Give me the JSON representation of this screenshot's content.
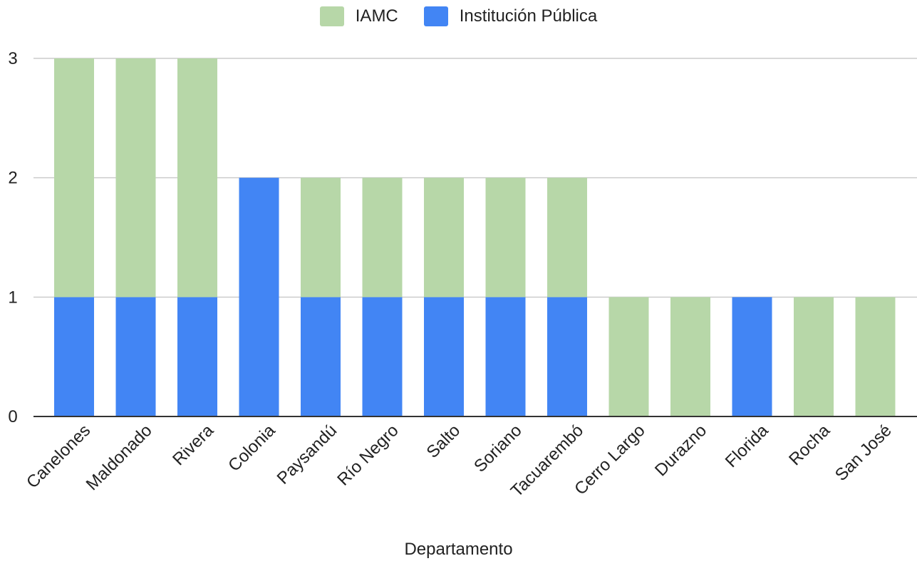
{
  "chart_data": {
    "type": "bar",
    "stacked": true,
    "categories": [
      "Canelones",
      "Maldonado",
      "Rivera",
      "Colonia",
      "Paysandú",
      "Río Negro",
      "Salto",
      "Soriano",
      "Tacuarembó",
      "Cerro Largo",
      "Durazno",
      "Florida",
      "Rocha",
      "San José"
    ],
    "series": [
      {
        "name": "Institución Pública",
        "color": "#4285f4",
        "values": [
          1,
          1,
          1,
          2,
          1,
          1,
          1,
          1,
          1,
          0,
          0,
          1,
          0,
          0
        ]
      },
      {
        "name": "IAMC",
        "color": "#b7d7a8",
        "values": [
          2,
          2,
          2,
          0,
          1,
          1,
          1,
          1,
          1,
          1,
          1,
          0,
          1,
          1
        ]
      }
    ],
    "legend_order": [
      "IAMC",
      "Institución Pública"
    ],
    "legend_position": "top",
    "xlabel": "Departamento",
    "ylabel": "",
    "ylim": [
      0,
      3
    ],
    "yticks": [
      0,
      1,
      2,
      3
    ],
    "grid": true
  }
}
